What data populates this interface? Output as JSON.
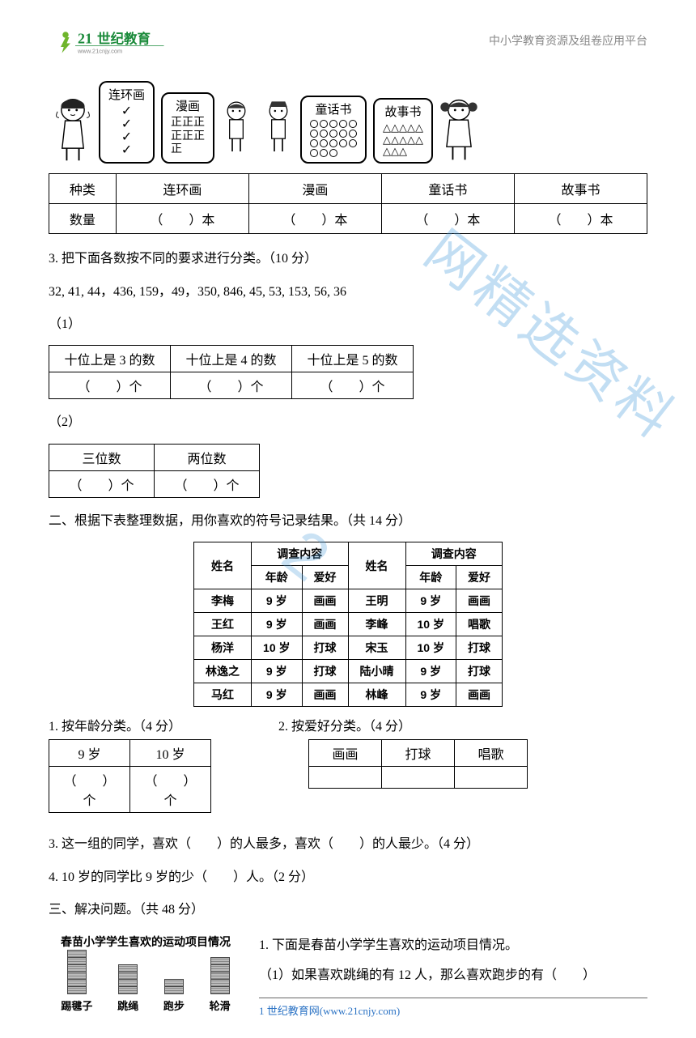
{
  "header": {
    "brand_cn": "21世纪教育",
    "brand_url": "www.21cnjy.com",
    "right_text": "中小学教育资源及组卷应用平台"
  },
  "watermark": {
    "text": "网精选资料",
    "text2": "2"
  },
  "cartoon": {
    "bubbles": [
      {
        "title": "连环画",
        "payload": "ticks",
        "ticks": 4
      },
      {
        "title": "漫画",
        "payload": "tally",
        "lines": [
          "正正正",
          "正正正",
          "正"
        ]
      },
      {
        "title": "童话书",
        "payload": "circles",
        "rows": [
          5,
          5,
          5,
          3
        ]
      },
      {
        "title": "故事书",
        "payload": "triangles",
        "rows": [
          5,
          5,
          3
        ]
      }
    ]
  },
  "table_top": {
    "headers": [
      "种类",
      "连环画",
      "漫画",
      "童话书",
      "故事书"
    ],
    "row_label": "数量",
    "cell_text": "（　　）本"
  },
  "q3": {
    "title": "3. 把下面各数按不同的要求进行分类。（10 分）",
    "numbers": "32, 41, 44，436, 159，49，350, 846, 45, 53, 153, 56, 36",
    "p1": "（1）",
    "t1_headers": [
      "十位上是 3 的数",
      "十位上是 4 的数",
      "十位上是 5 的数"
    ],
    "blank_unit": "（　　）个",
    "p2": "（2）",
    "t2_headers": [
      "三位数",
      "两位数"
    ]
  },
  "sec2": {
    "title": "二、根据下表整理数据，用你喜欢的符号记录结果。（共 14 分）",
    "survey_headers": {
      "name": "姓名",
      "content": "调查内容",
      "age": "年龄",
      "hobby": "爱好"
    },
    "left_rows": [
      [
        "李梅",
        "9 岁",
        "画画"
      ],
      [
        "王红",
        "9 岁",
        "画画"
      ],
      [
        "杨洋",
        "10 岁",
        "打球"
      ],
      [
        "林逸之",
        "9 岁",
        "打球"
      ],
      [
        "马红",
        "9 岁",
        "画画"
      ]
    ],
    "right_rows": [
      [
        "王明",
        "9 岁",
        "画画"
      ],
      [
        "李峰",
        "10 岁",
        "唱歌"
      ],
      [
        "宋玉",
        "10 岁",
        "打球"
      ],
      [
        "陆小晴",
        "9 岁",
        "打球"
      ],
      [
        "林峰",
        "9 岁",
        "画画"
      ]
    ],
    "q1": "1. 按年龄分类。（4 分）",
    "q2": "2. 按爱好分类。（4 分）",
    "age_table": {
      "headers": [
        "9 岁",
        "10 岁"
      ],
      "blank": "（　　）个"
    },
    "hobby_table": {
      "headers": [
        "画画",
        "打球",
        "唱歌"
      ]
    },
    "q3": "3. 这一组的同学，喜欢（　　）的人最多，喜欢（　　）的人最少。（4 分）",
    "q4": "4. 10 岁的同学比 9 岁的少（　　）人。（2 分）"
  },
  "sec3": {
    "title": "三、解决问题。（共 48 分）",
    "chart_title": "春苗小学学生喜欢的运动项目情况",
    "bars": [
      {
        "label": "踢毽子",
        "segments": 6
      },
      {
        "label": "跳绳",
        "segments": 4
      },
      {
        "label": "跑步",
        "segments": 2
      },
      {
        "label": "轮滑",
        "segments": 5
      }
    ],
    "right_q1": "1. 下面是春苗小学学生喜欢的运动项目情况。",
    "right_q1a": "（1）如果喜欢跳绳的有 12 人，那么喜欢跑步的有（　　）"
  },
  "footer": {
    "text": "1 世纪教育网(www.21cnjy.com)"
  }
}
